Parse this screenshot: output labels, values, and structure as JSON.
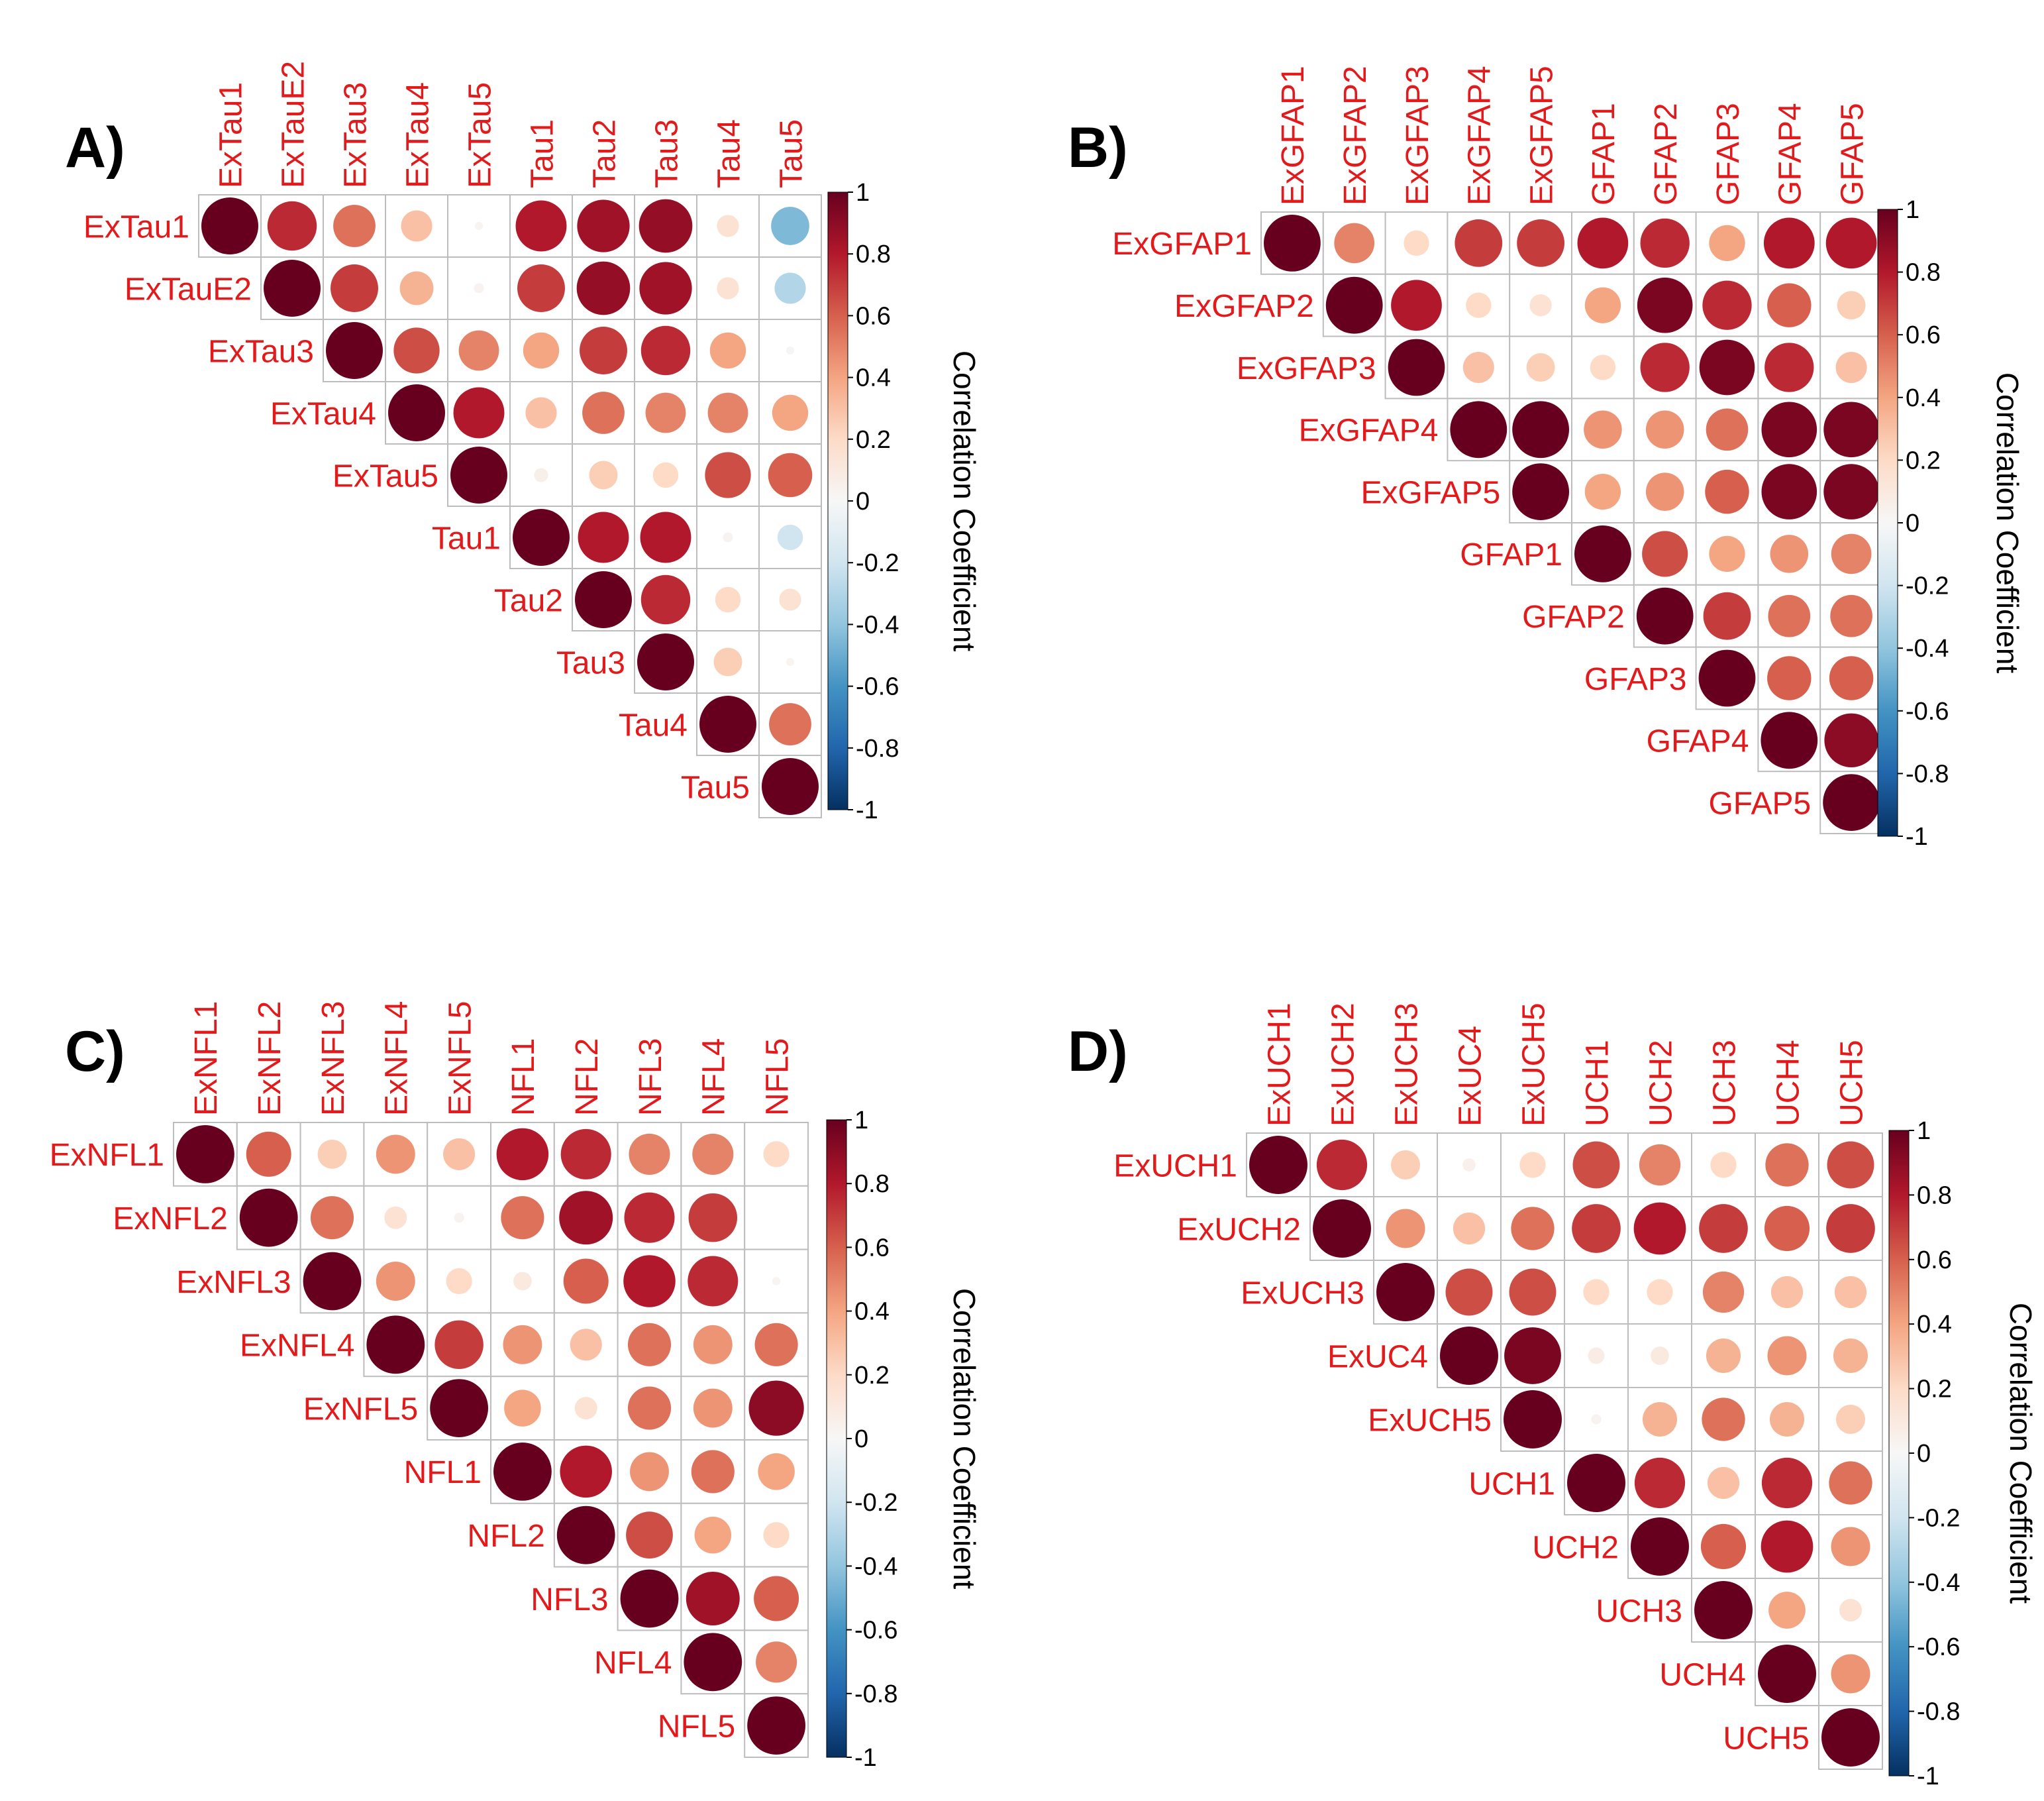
{
  "figure": {
    "label_color": "#e31a1c",
    "cell_border_color": "#bdbdbd",
    "colorbar": {
      "title": "Correlation Coefficient",
      "ticks": [
        "1",
        "0.8",
        "0.6",
        "0.4",
        "0.2",
        "0",
        "-0.2",
        "-0.4",
        "-0.6",
        "-0.8",
        "-1"
      ],
      "colors": [
        "#67001f",
        "#b2182b",
        "#d6604d",
        "#f4a582",
        "#fddbc7",
        "#f7f7f7",
        "#d1e5f0",
        "#92c5de",
        "#4393c3",
        "#2166ac",
        "#053061"
      ]
    }
  },
  "chart_data": [
    {
      "type": "heatmap",
      "panel": "A)",
      "style": "upper-triangle correlation plot (circles)",
      "labels_top": [
        "ExTau1",
        "ExTauE2",
        "ExTau3",
        "ExTau4",
        "ExTau5",
        "Tau1",
        "Tau2",
        "Tau3",
        "Tau4",
        "Tau5"
      ],
      "labels_left": [
        "ExTau1",
        "ExTauE2",
        "ExTau3",
        "ExTau4",
        "ExTau5",
        "Tau1",
        "Tau2",
        "Tau3",
        "Tau4",
        "Tau5"
      ],
      "colorbar_title": "Correlation Coefficient",
      "colorbar_range": [
        -1,
        1
      ],
      "matrix": [
        [
          1,
          0.75,
          0.55,
          0.3,
          0.02,
          0.8,
          0.85,
          0.88,
          0.15,
          -0.45
        ],
        [
          null,
          1,
          0.7,
          0.35,
          0.03,
          0.7,
          0.88,
          0.85,
          0.15,
          -0.3
        ],
        [
          null,
          null,
          1,
          0.65,
          0.5,
          0.4,
          0.7,
          0.75,
          0.4,
          -0.02
        ],
        [
          null,
          null,
          null,
          1,
          0.8,
          0.3,
          0.55,
          0.5,
          0.5,
          0.4
        ],
        [
          null,
          null,
          null,
          null,
          1,
          0.06,
          0.25,
          0.2,
          0.65,
          0.6
        ],
        [
          null,
          null,
          null,
          null,
          null,
          1,
          0.8,
          0.8,
          0.03,
          -0.2
        ],
        [
          null,
          null,
          null,
          null,
          null,
          null,
          1,
          0.75,
          0.2,
          0.15
        ],
        [
          null,
          null,
          null,
          null,
          null,
          null,
          null,
          1,
          0.25,
          0.02
        ],
        [
          null,
          null,
          null,
          null,
          null,
          null,
          null,
          null,
          1,
          0.55
        ],
        [
          null,
          null,
          null,
          null,
          null,
          null,
          null,
          null,
          null,
          1
        ]
      ]
    },
    {
      "type": "heatmap",
      "panel": "B)",
      "style": "upper-triangle correlation plot (circles)",
      "labels_top": [
        "ExGFAP1",
        "ExGFAP2",
        "ExGFAP3",
        "ExGFAP4",
        "ExGFAP5",
        "GFAP1",
        "GFAP2",
        "GFAP3",
        "GFAP4",
        "GFAP5"
      ],
      "labels_left": [
        "ExGFAP1",
        "ExGFAP2",
        "ExGFAP3",
        "ExGFAP4",
        "ExGFAP5",
        "GFAP1",
        "GFAP2",
        "GFAP3",
        "GFAP4",
        "GFAP5"
      ],
      "colorbar_title": "Correlation Coefficient",
      "colorbar_range": [
        -1,
        1
      ],
      "matrix": [
        [
          1,
          0.5,
          0.2,
          0.7,
          0.7,
          0.8,
          0.75,
          0.4,
          0.8,
          0.8
        ],
        [
          null,
          1,
          0.8,
          0.2,
          0.15,
          0.4,
          0.95,
          0.75,
          0.6,
          0.25
        ],
        [
          null,
          null,
          1,
          0.3,
          0.25,
          0.2,
          0.75,
          0.95,
          0.75,
          0.3
        ],
        [
          null,
          null,
          null,
          1,
          1,
          0.45,
          0.45,
          0.55,
          0.95,
          0.95
        ],
        [
          null,
          null,
          null,
          null,
          1,
          0.4,
          0.45,
          0.6,
          0.95,
          0.95
        ],
        [
          null,
          null,
          null,
          null,
          null,
          1,
          0.65,
          0.4,
          0.45,
          0.5
        ],
        [
          null,
          null,
          null,
          null,
          null,
          null,
          1,
          0.7,
          0.55,
          0.55
        ],
        [
          null,
          null,
          null,
          null,
          null,
          null,
          null,
          1,
          0.6,
          0.6
        ],
        [
          null,
          null,
          null,
          null,
          null,
          null,
          null,
          null,
          1,
          0.9
        ],
        [
          null,
          null,
          null,
          null,
          null,
          null,
          null,
          null,
          null,
          1
        ]
      ]
    },
    {
      "type": "heatmap",
      "panel": "C)",
      "style": "upper-triangle correlation plot (circles)",
      "labels_top": [
        "ExNFL1",
        "ExNFL2",
        "ExNFL3",
        "ExNFL4",
        "ExNFL5",
        "NFL1",
        "NFL2",
        "NFL3",
        "NFL4",
        "NFL5"
      ],
      "labels_left": [
        "ExNFL1",
        "ExNFL2",
        "ExNFL3",
        "ExNFL4",
        "ExNFL5",
        "NFL1",
        "NFL2",
        "NFL3",
        "NFL4",
        "NFL5"
      ],
      "colorbar_title": "Correlation Coefficient",
      "colorbar_range": [
        -1,
        1
      ],
      "matrix": [
        [
          1,
          0.6,
          0.25,
          0.45,
          0.3,
          0.8,
          0.75,
          0.5,
          0.5,
          0.2
        ],
        [
          null,
          1,
          0.55,
          0.15,
          0.03,
          0.55,
          0.85,
          0.75,
          0.7,
          0.0
        ],
        [
          null,
          null,
          1,
          0.45,
          0.2,
          0.1,
          0.6,
          0.8,
          0.75,
          0.02
        ],
        [
          null,
          null,
          null,
          1,
          0.7,
          0.45,
          0.3,
          0.55,
          0.45,
          0.55
        ],
        [
          null,
          null,
          null,
          null,
          1,
          0.4,
          0.15,
          0.55,
          0.45,
          0.9
        ],
        [
          null,
          null,
          null,
          null,
          null,
          1,
          0.8,
          0.45,
          0.55,
          0.4
        ],
        [
          null,
          null,
          null,
          null,
          null,
          null,
          1,
          0.65,
          0.4,
          0.2
        ],
        [
          null,
          null,
          null,
          null,
          null,
          null,
          null,
          1,
          0.85,
          0.6
        ],
        [
          null,
          null,
          null,
          null,
          null,
          null,
          null,
          null,
          1,
          0.5
        ],
        [
          null,
          null,
          null,
          null,
          null,
          null,
          null,
          null,
          null,
          1
        ]
      ]
    },
    {
      "type": "heatmap",
      "panel": "D)",
      "style": "upper-triangle correlation plot (circles)",
      "labels_top": [
        "ExUCH1",
        "ExUCH2",
        "ExUCH3",
        "ExUC4",
        "ExUCH5",
        "UCH1",
        "UCH2",
        "UCH3",
        "UCH4",
        "UCH5"
      ],
      "labels_left": [
        "ExUCH1",
        "ExUCH2",
        "ExUCH3",
        "ExUC4",
        "ExUCH5",
        "UCH1",
        "UCH2",
        "UCH3",
        "UCH4",
        "UCH5"
      ],
      "colorbar_title": "Correlation Coefficient",
      "colorbar_range": [
        -1,
        1
      ],
      "matrix": [
        [
          1,
          0.75,
          0.25,
          0.05,
          0.2,
          0.65,
          0.5,
          0.2,
          0.55,
          0.65
        ],
        [
          null,
          1,
          0.45,
          0.3,
          0.55,
          0.7,
          0.8,
          0.7,
          0.6,
          0.7
        ],
        [
          null,
          null,
          1,
          0.65,
          0.65,
          0.2,
          0.2,
          0.5,
          0.3,
          0.3
        ],
        [
          null,
          null,
          null,
          1,
          0.95,
          0.08,
          0.1,
          0.35,
          0.45,
          0.35
        ],
        [
          null,
          null,
          null,
          null,
          1,
          0.03,
          0.35,
          0.55,
          0.35,
          0.25
        ],
        [
          null,
          null,
          null,
          null,
          null,
          1,
          0.75,
          0.3,
          0.75,
          0.55
        ],
        [
          null,
          null,
          null,
          null,
          null,
          null,
          1,
          0.6,
          0.8,
          0.45
        ],
        [
          null,
          null,
          null,
          null,
          null,
          null,
          null,
          1,
          0.4,
          0.15
        ],
        [
          null,
          null,
          null,
          null,
          null,
          null,
          null,
          null,
          1,
          0.45
        ],
        [
          null,
          null,
          null,
          null,
          null,
          null,
          null,
          null,
          null,
          1
        ]
      ]
    }
  ]
}
